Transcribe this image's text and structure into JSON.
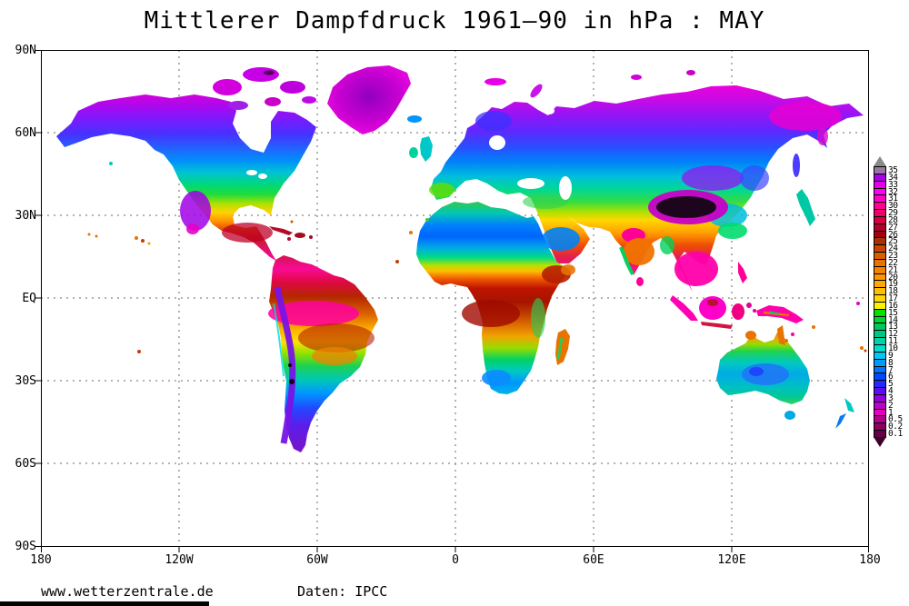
{
  "title": "Mittlerer Dampfdruck 1961—90 in hPa : MAY",
  "footer": {
    "website": "www.wetterzentrale.de",
    "data_source": "Daten: IPCC"
  },
  "map": {
    "x_ticks": [
      "180",
      "120W",
      "60W",
      "0",
      "60E",
      "120E",
      "180"
    ],
    "y_ticks": [
      "90N",
      "60N",
      "30N",
      "EQ",
      "30S",
      "60S",
      "90S"
    ]
  },
  "legend": {
    "units": "hPa",
    "above_max_color": "#8A8A8A",
    "below_min_color": "#3C0028",
    "entries": [
      {
        "value": "35",
        "color": "#9678A0"
      },
      {
        "value": "34",
        "color": "#AA00E6"
      },
      {
        "value": "33",
        "color": "#E600E6"
      },
      {
        "value": "32",
        "color": "#FF00F5"
      },
      {
        "value": "31",
        "color": "#FF00C8"
      },
      {
        "value": "30",
        "color": "#FF0096"
      },
      {
        "value": "29",
        "color": "#F00064"
      },
      {
        "value": "28",
        "color": "#D20041"
      },
      {
        "value": "27",
        "color": "#B40028"
      },
      {
        "value": "26",
        "color": "#A00014"
      },
      {
        "value": "25",
        "color": "#A53200"
      },
      {
        "value": "24",
        "color": "#C84600"
      },
      {
        "value": "23",
        "color": "#D75F00"
      },
      {
        "value": "22",
        "color": "#E87300"
      },
      {
        "value": "21",
        "color": "#F58200"
      },
      {
        "value": "20",
        "color": "#FF9600"
      },
      {
        "value": "19",
        "color": "#FFAA00"
      },
      {
        "value": "18",
        "color": "#FFBE00"
      },
      {
        "value": "17",
        "color": "#FFD700"
      },
      {
        "value": "16",
        "color": "#FFF000"
      },
      {
        "value": "15",
        "color": "#00E000"
      },
      {
        "value": "14",
        "color": "#00D232"
      },
      {
        "value": "13",
        "color": "#00C85F"
      },
      {
        "value": "12",
        "color": "#00C882"
      },
      {
        "value": "11",
        "color": "#00D2AA"
      },
      {
        "value": "10",
        "color": "#00DCCD"
      },
      {
        "value": "9",
        "color": "#00C8F0"
      },
      {
        "value": "8",
        "color": "#009BFF"
      },
      {
        "value": "7",
        "color": "#0073FF"
      },
      {
        "value": "6",
        "color": "#004BFF"
      },
      {
        "value": "5",
        "color": "#2328FF"
      },
      {
        "value": "4",
        "color": "#5F0AF5"
      },
      {
        "value": "3",
        "color": "#9100E1"
      },
      {
        "value": "2",
        "color": "#BE00C8"
      },
      {
        "value": "1",
        "color": "#E600BE"
      },
      {
        "value": "0.5",
        "color": "#B4008C"
      },
      {
        "value": "0.2",
        "color": "#8C0064"
      },
      {
        "value": "0.1",
        "color": "#640046"
      }
    ]
  },
  "chart_data": {
    "type": "heatmap",
    "title": "Mittlerer Dampfdruck 1961—90 in hPa : MAY",
    "variable": "mean vapour pressure (Mittlerer Dampfdruck)",
    "units": "hPa",
    "climatology_period": "1961-90",
    "month": "MAY",
    "projection": "equirectangular world map, land-only filled contours, ocean left white",
    "x_range_deg": [
      -180,
      180
    ],
    "y_range_deg": [
      -90,
      90
    ],
    "x_ticks": [
      "180",
      "120W",
      "60W",
      "0",
      "60E",
      "120E",
      "180"
    ],
    "y_ticks": [
      "90N",
      "60N",
      "30N",
      "EQ",
      "30S",
      "60S",
      "90S"
    ],
    "grid": "dashed 30-degree graticule",
    "graticule_interval_deg": 30,
    "legend_position": "right",
    "scale_values": [
      35,
      34,
      33,
      32,
      31,
      30,
      29,
      28,
      27,
      26,
      25,
      24,
      23,
      22,
      21,
      20,
      19,
      18,
      17,
      16,
      15,
      14,
      13,
      12,
      11,
      10,
      9,
      8,
      7,
      6,
      5,
      4,
      3,
      2,
      1,
      0.5,
      0.2,
      0.1
    ],
    "region_values_hPa": [
      {
        "region": "Canadian Arctic islands / Greenland",
        "value": "0.5-3"
      },
      {
        "region": "Northern Siberia coast",
        "value": "1-4"
      },
      {
        "region": "Canada / Scandinavia / central Siberia",
        "value": "4-8"
      },
      {
        "region": "Central USA / central Europe",
        "value": "10-15"
      },
      {
        "region": "Southern USA / Mediterranean / Iran",
        "value": "16-21"
      },
      {
        "region": "Sahara interior",
        "value": "6-10"
      },
      {
        "region": "Sahel belt",
        "value": "24-28"
      },
      {
        "region": "Congo basin / central Africa",
        "value": "25-28"
      },
      {
        "region": "Amazon basin (north)",
        "value": "28-32"
      },
      {
        "region": "Caribbean / Central America",
        "value": "25-30"
      },
      {
        "region": "NW India / Indochina",
        "value": "28-33"
      },
      {
        "region": "Indonesia / New Guinea lowlands",
        "value": "30-33"
      },
      {
        "region": "Tibetan plateau",
        "value": "< 0.5"
      },
      {
        "region": "High Andes",
        "value": "0.5-4"
      },
      {
        "region": "Southern Africa interior",
        "value": "8-14"
      },
      {
        "region": "Australian interior",
        "value": "6-10"
      },
      {
        "region": "Patagonia",
        "value": "3-6"
      },
      {
        "region": "New Zealand",
        "value": "7-10"
      }
    ]
  }
}
